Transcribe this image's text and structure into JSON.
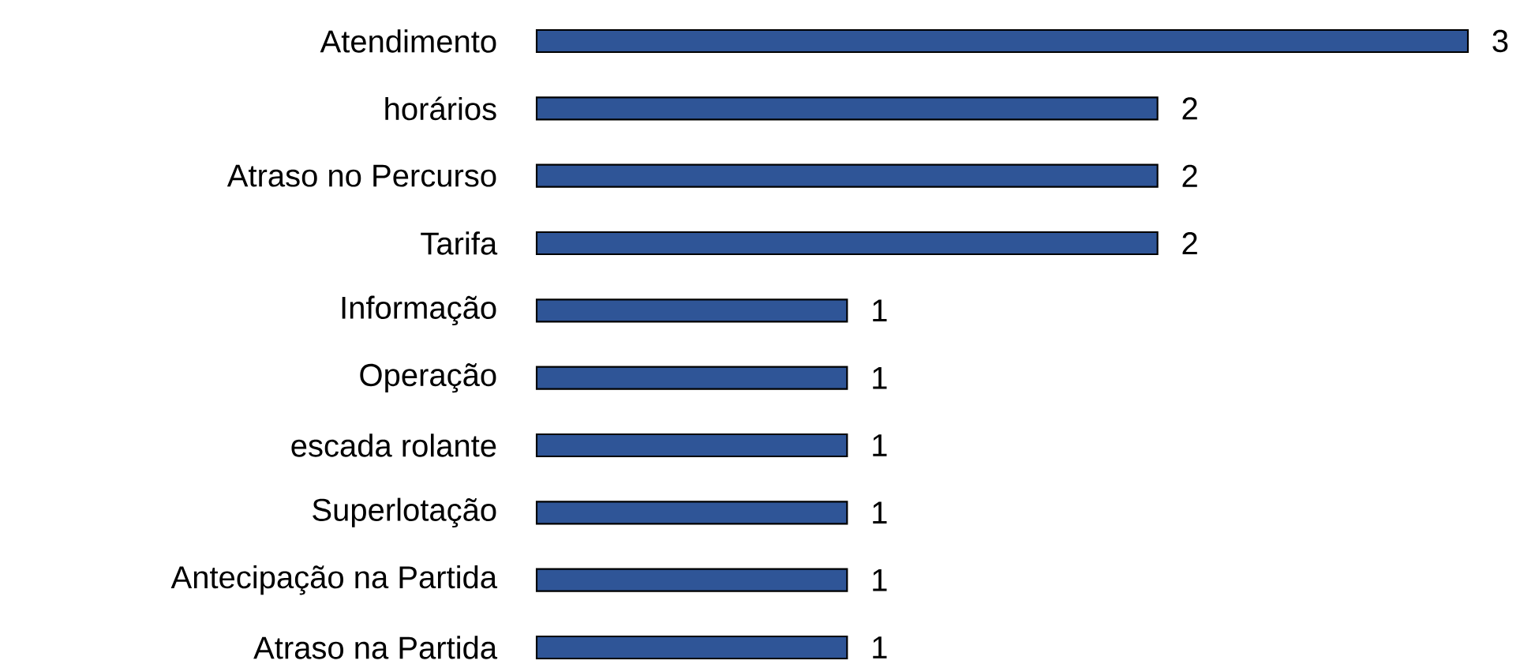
{
  "chart_data": {
    "type": "bar",
    "orientation": "horizontal",
    "categories": [
      "Atendimento",
      "horários",
      "Atraso no Percurso",
      "Tarifa",
      "Informação",
      "Operação",
      "escada rolante",
      "Superlotação",
      "Antecipação na Partida",
      "Atraso na Partida"
    ],
    "values": [
      3,
      2,
      2,
      2,
      1,
      1,
      1,
      1,
      1,
      1
    ],
    "color": "#2f5597",
    "data_labels": true
  }
}
